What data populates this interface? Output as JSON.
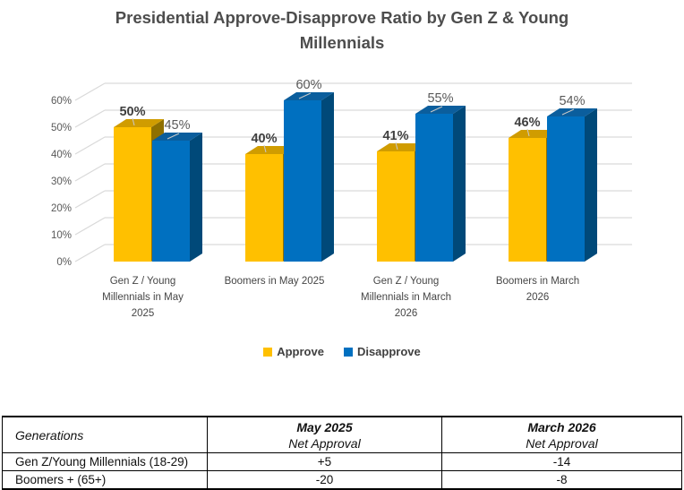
{
  "title": "Presidential Approve-Disapprove Ratio by Gen Z & Young Millennials",
  "chart_data": {
    "type": "bar",
    "style": "3d-clustered-column",
    "categories": [
      "Gen Z / Young Millennials in May 2025",
      "Boomers in May 2025",
      "Gen Z / Young Millennials in March 2026",
      "Boomers in March 2026"
    ],
    "series": [
      {
        "name": "Approve",
        "color": "#FFC000",
        "top_color": "#D09C00",
        "side_color": "#8F7000",
        "values": [
          50,
          40,
          41,
          46
        ]
      },
      {
        "name": "Disapprove",
        "color": "#0070C0",
        "top_color": "#0B5E9D",
        "side_color": "#004979",
        "values": [
          45,
          60,
          55,
          54
        ]
      }
    ],
    "data_labels": {
      "Approve": [
        "50%",
        "40%",
        "41%",
        "46%"
      ],
      "Disapprove": [
        "45%",
        "60%",
        "55%",
        "54%"
      ]
    },
    "xlabel": "",
    "ylabel": "",
    "ylim": [
      0,
      60
    ],
    "ytick_step": 10,
    "ytick_labels": [
      "0%",
      "10%",
      "20%",
      "30%",
      "40%",
      "50%",
      "60%"
    ],
    "grid": true,
    "grid_color": "#d9d9d9",
    "axis_text_color": "#595959",
    "legend_position": "bottom"
  },
  "table": {
    "header": {
      "col1": "Generations",
      "col2_line1": "May 2025",
      "col2_line2": "Net Approval",
      "col3_line1": "March 2026",
      "col3_line2": "Net Approval"
    },
    "rows": [
      {
        "generation": "Gen Z/Young Millennials (18-29)",
        "may_2025": "+5",
        "march_2026": "-14"
      },
      {
        "generation": "Boomers + (65+)",
        "may_2025": "-20",
        "march_2026": "-8"
      }
    ]
  }
}
